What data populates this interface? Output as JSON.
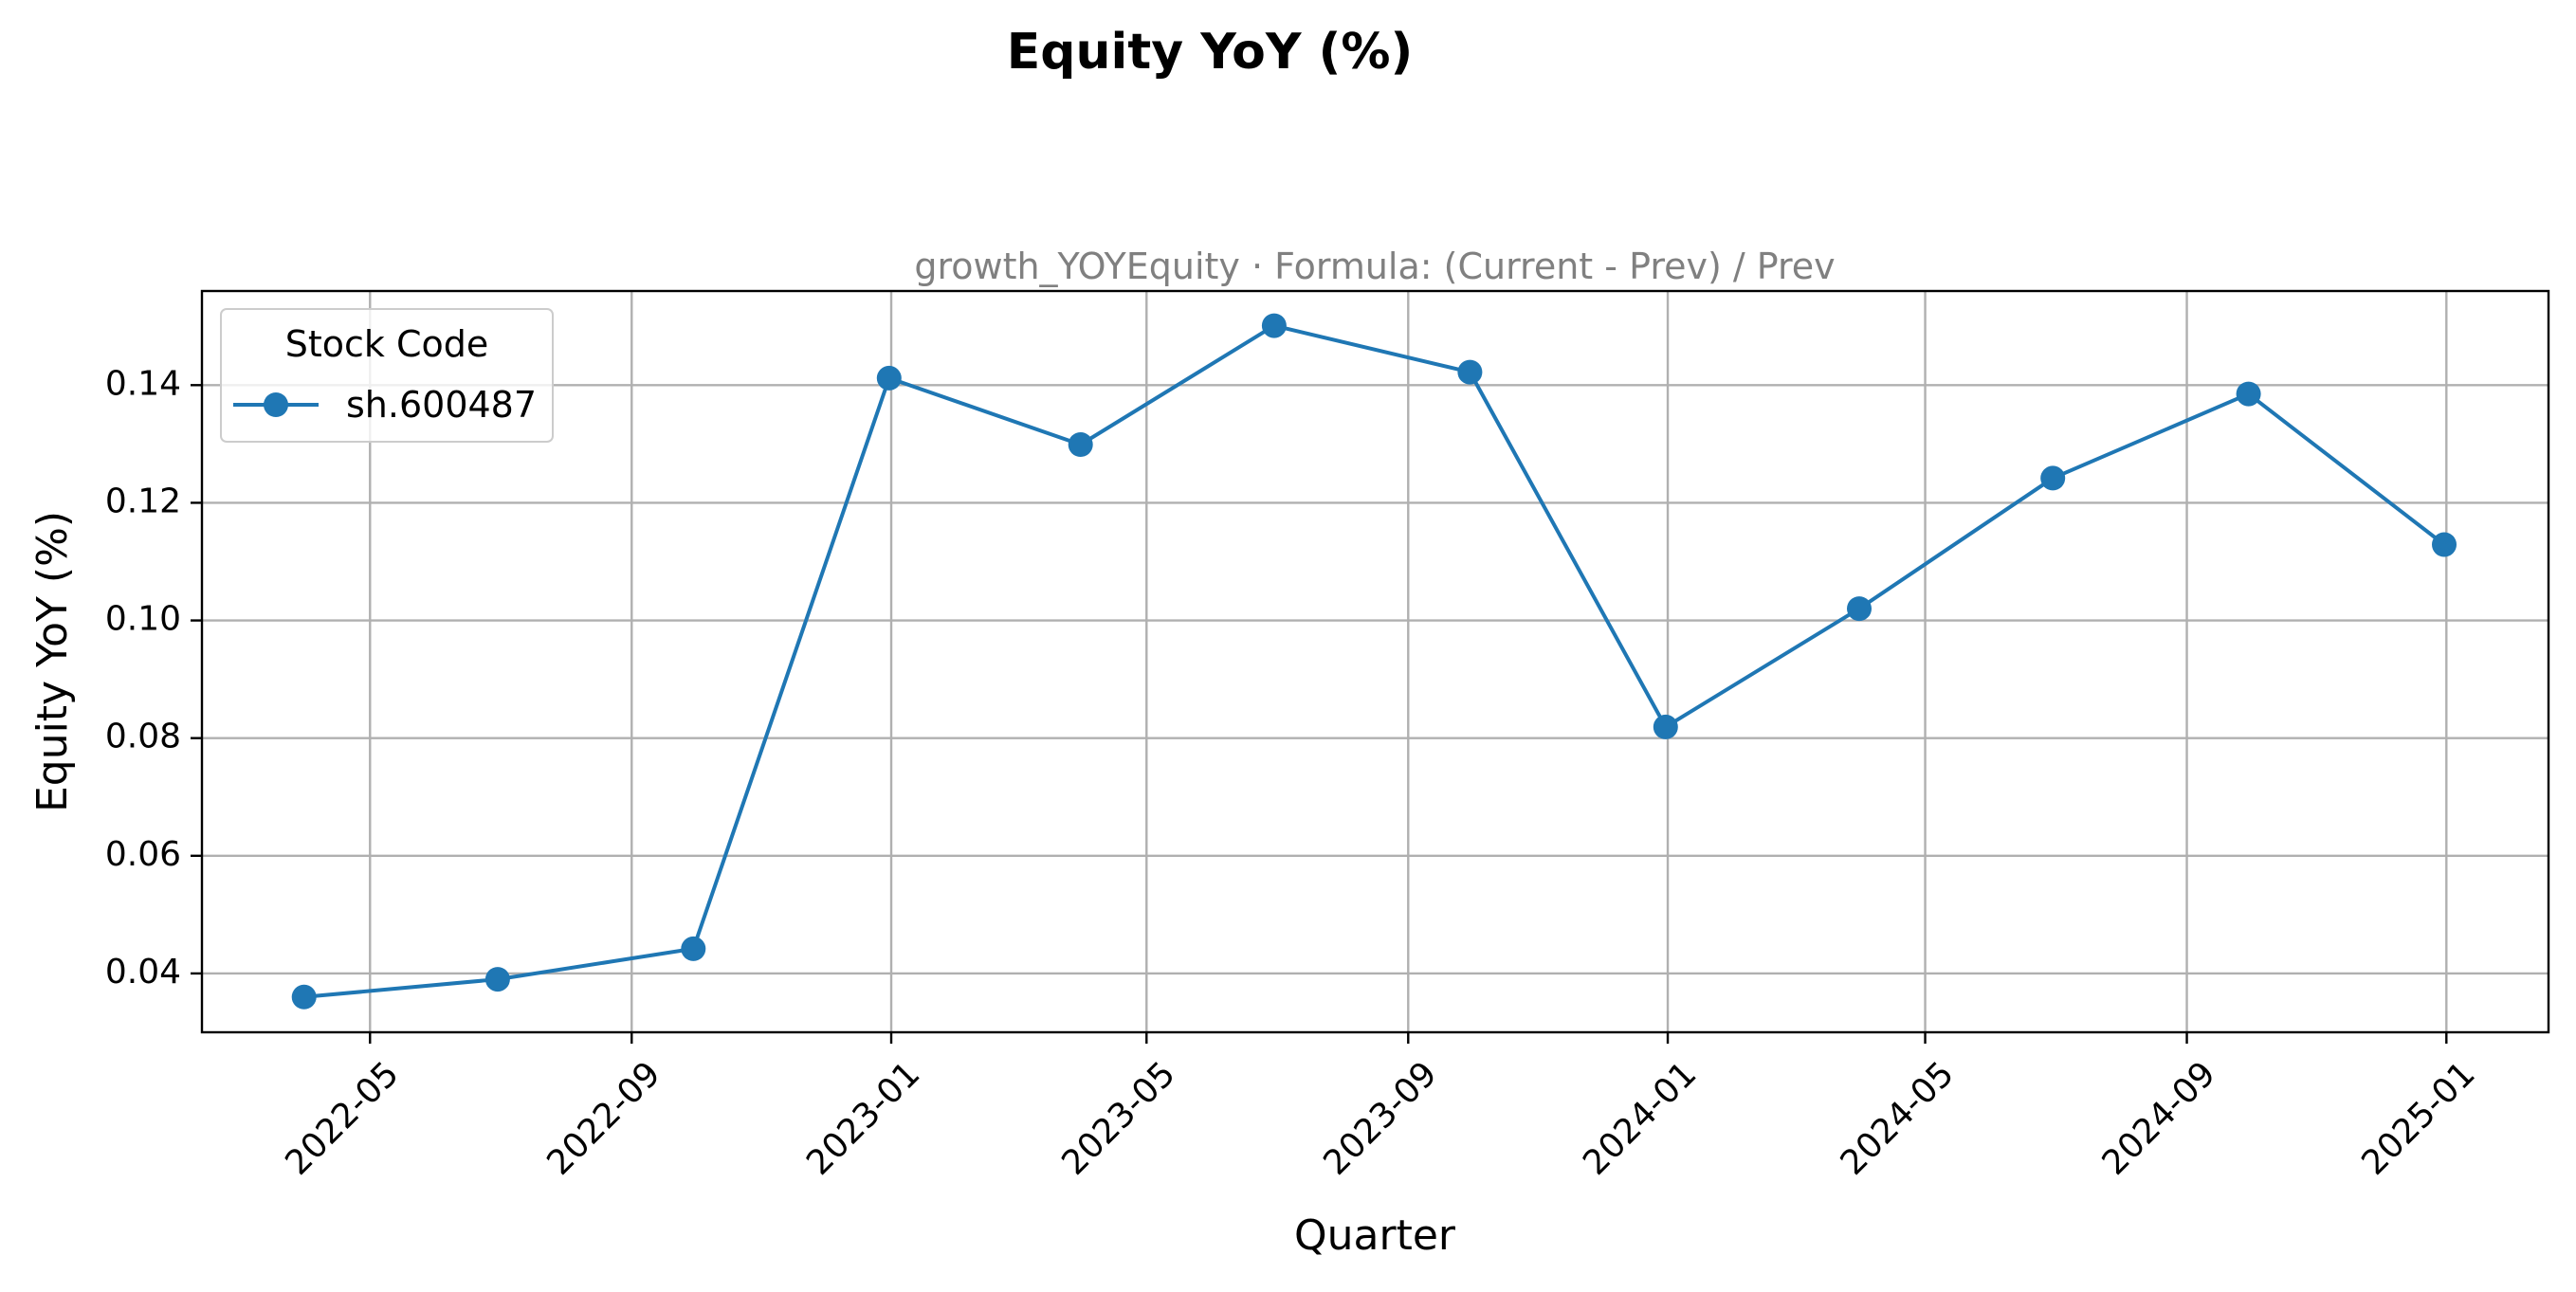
{
  "chart_data": {
    "type": "line",
    "title": "Equity YoY (%)",
    "subtitle": "growth_YOYEquity · Formula: (Current - Prev) / Prev",
    "xlabel": "Quarter",
    "ylabel": "Equity YoY (%)",
    "x": [
      "2022-03-31",
      "2022-06-30",
      "2022-09-30",
      "2022-12-31",
      "2023-03-31",
      "2023-06-30",
      "2023-09-30",
      "2023-12-31",
      "2024-03-31",
      "2024-06-30",
      "2024-09-30",
      "2024-12-31"
    ],
    "x_tick_labels": [
      "2022-05",
      "2022-09",
      "2023-01",
      "2023-05",
      "2023-09",
      "2024-01",
      "2024-05",
      "2024-09",
      "2025-01"
    ],
    "x_tick_values": [
      "2022-05-01",
      "2022-09-01",
      "2023-01-01",
      "2023-05-01",
      "2023-09-01",
      "2024-01-01",
      "2024-05-01",
      "2024-09-01",
      "2025-01-01"
    ],
    "xlim": [
      "2022-02-11",
      "2025-02-18"
    ],
    "y_tick_labels": [
      "0.04",
      "0.06",
      "0.08",
      "0.10",
      "0.12",
      "0.14"
    ],
    "y_tick_values": [
      0.04,
      0.06,
      0.08,
      0.1,
      0.12,
      0.14
    ],
    "ylim": [
      0.03,
      0.156
    ],
    "grid": true,
    "legend": {
      "title": "Stock Code",
      "placement": "upper-left"
    },
    "series": [
      {
        "name": "sh.600487",
        "color": "#1f77b4",
        "marker": "circle",
        "values": [
          0.036,
          0.039,
          0.0442,
          0.1412,
          0.1299,
          0.1501,
          0.1422,
          0.0819,
          0.102,
          0.1242,
          0.1385,
          0.1129
        ]
      }
    ]
  }
}
